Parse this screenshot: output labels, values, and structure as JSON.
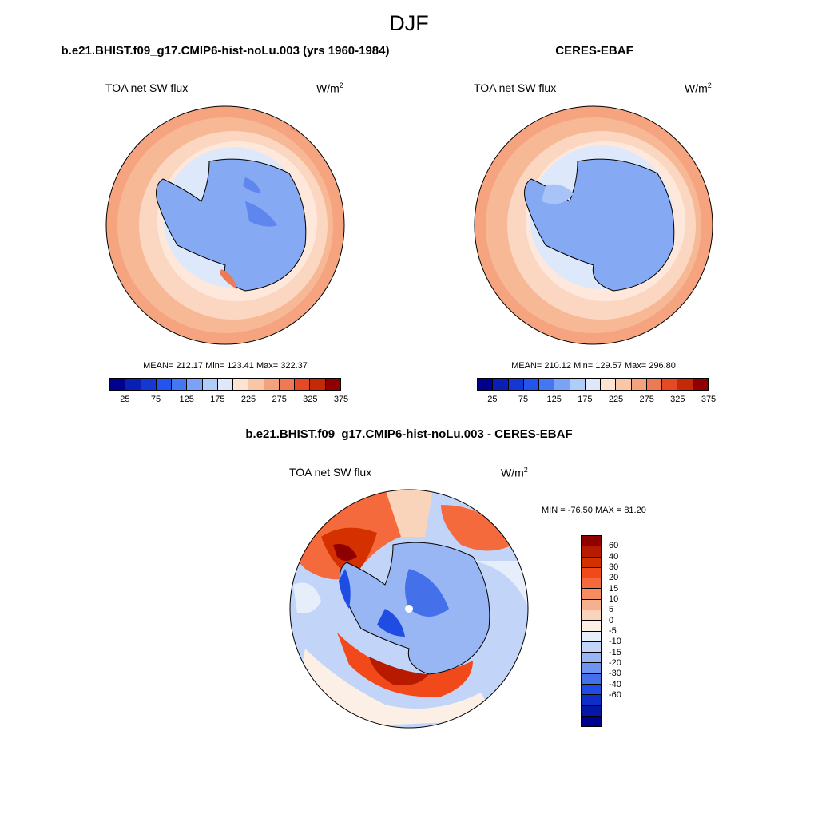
{
  "season": "DJF",
  "panel_model": {
    "title": "b.e21.BHIST.f09_g17.CMIP6-hist-noLu.003 (yrs 1960-1984)",
    "variable": "TOA net SW flux",
    "units": "W/m",
    "units_sup": "2",
    "stats": "MEAN= 212.17  Min= 123.41  Max= 322.37"
  },
  "panel_obs": {
    "title": "CERES-EBAF",
    "variable": "TOA net SW flux",
    "units": "W/m",
    "units_sup": "2",
    "stats": "MEAN= 210.12  Min= 129.57  Max= 296.80"
  },
  "panel_diff": {
    "title": "b.e21.BHIST.f09_g17.CMIP6-hist-noLu.003 - CERES-EBAF",
    "variable": "TOA net SW flux",
    "units": "W/m",
    "units_sup": "2",
    "stats": "MIN = -76.50 MAX =  81.20"
  },
  "colorbar_abs": {
    "colors": [
      "#00008f",
      "#0a1fb4",
      "#1338d4",
      "#2255ee",
      "#4478f2",
      "#7aa2f6",
      "#b0ccf8",
      "#dde9fb",
      "#fde3d2",
      "#f9c6a6",
      "#f4a27c",
      "#ee7a55",
      "#e64a24",
      "#c42a0a",
      "#8f0000"
    ],
    "labels": [
      "25",
      "75",
      "125",
      "175",
      "225",
      "275",
      "325",
      "375"
    ]
  },
  "colorbar_diff": {
    "colors": [
      "#8f0000",
      "#b81a00",
      "#d43000",
      "#f2491a",
      "#f56a3c",
      "#f68d62",
      "#f7b08e",
      "#fad3bb",
      "#fcf0e6",
      "#e6eefc",
      "#c2d5f8",
      "#97b6f3",
      "#6d95ef",
      "#4471ea",
      "#1f4de4",
      "#0d2ec7",
      "#0617a7",
      "#00008f"
    ],
    "labels": [
      "60",
      "40",
      "30",
      "20",
      "15",
      "10",
      "5",
      "0",
      "-5",
      "-10",
      "-15",
      "-20",
      "-30",
      "-40",
      "-60"
    ]
  }
}
